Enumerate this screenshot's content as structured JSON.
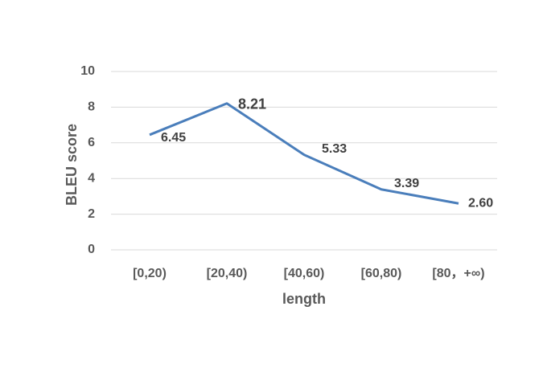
{
  "chart_data": {
    "type": "line",
    "x_label": "length",
    "y_label": "BLEU score",
    "categories": [
      "[0,20)",
      "[20,40)",
      "[40,60)",
      "[60,80)",
      "[80，+∞)"
    ],
    "series": [
      {
        "color": "#4a7ebb",
        "values": [
          6.45,
          8.21,
          5.33,
          3.39,
          2.6
        ],
        "value_labels": [
          "6.45",
          "8.21",
          "5.33",
          "3.39",
          "2.60"
        ]
      }
    ],
    "ylim": [
      0,
      10
    ],
    "yticks": [
      0,
      2,
      4,
      6,
      8,
      10
    ],
    "grid": true
  }
}
